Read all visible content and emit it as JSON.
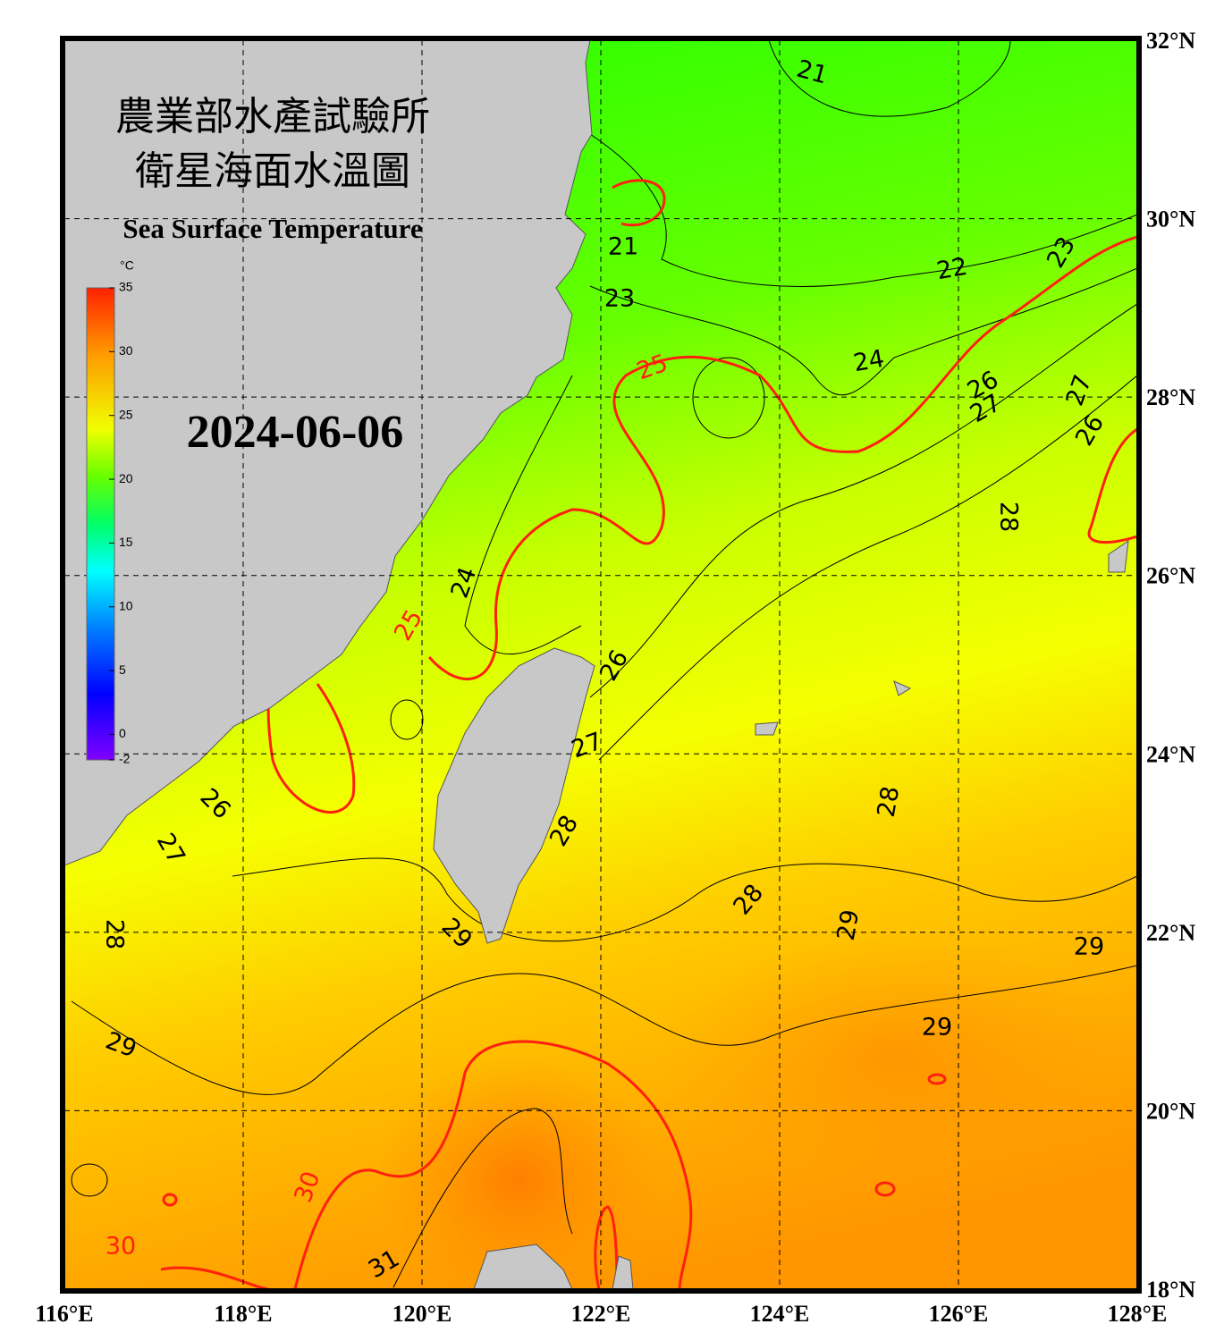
{
  "title_zh_1": "農業部水產試驗所",
  "title_zh_2": "衛星海面水溫圖",
  "title_en": "Sea Surface Temperature",
  "date": "2024-06-06",
  "map": {
    "xlim": [
      116,
      128
    ],
    "ylim": [
      18,
      32
    ],
    "xticks": [
      {
        "value": 116,
        "label": "116°E"
      },
      {
        "value": 118,
        "label": "118°E"
      },
      {
        "value": 120,
        "label": "120°E"
      },
      {
        "value": 122,
        "label": "122°E"
      },
      {
        "value": 124,
        "label": "124°E"
      },
      {
        "value": 126,
        "label": "126°E"
      },
      {
        "value": 128,
        "label": "128°E"
      }
    ],
    "yticks": [
      {
        "value": 18,
        "label": "18°N"
      },
      {
        "value": 20,
        "label": "20°N"
      },
      {
        "value": 22,
        "label": "22°N"
      },
      {
        "value": 24,
        "label": "24°N"
      },
      {
        "value": 26,
        "label": "26°N"
      },
      {
        "value": 28,
        "label": "28°N"
      },
      {
        "value": 30,
        "label": "30°N"
      },
      {
        "value": 32,
        "label": "32°N"
      }
    ],
    "grid": true
  },
  "colorbar": {
    "unit": "°C",
    "lim": [
      -2,
      35
    ],
    "ticks": [
      35,
      30,
      25,
      20,
      15,
      10,
      5,
      0,
      -2
    ]
  },
  "contour_labels": [
    21,
    21,
    23,
    22,
    23,
    24,
    25,
    26,
    27,
    27,
    26,
    28,
    24,
    25,
    26,
    27,
    28,
    26,
    27,
    28,
    28,
    29,
    28,
    29,
    29,
    29,
    29,
    30,
    30,
    31
  ]
}
